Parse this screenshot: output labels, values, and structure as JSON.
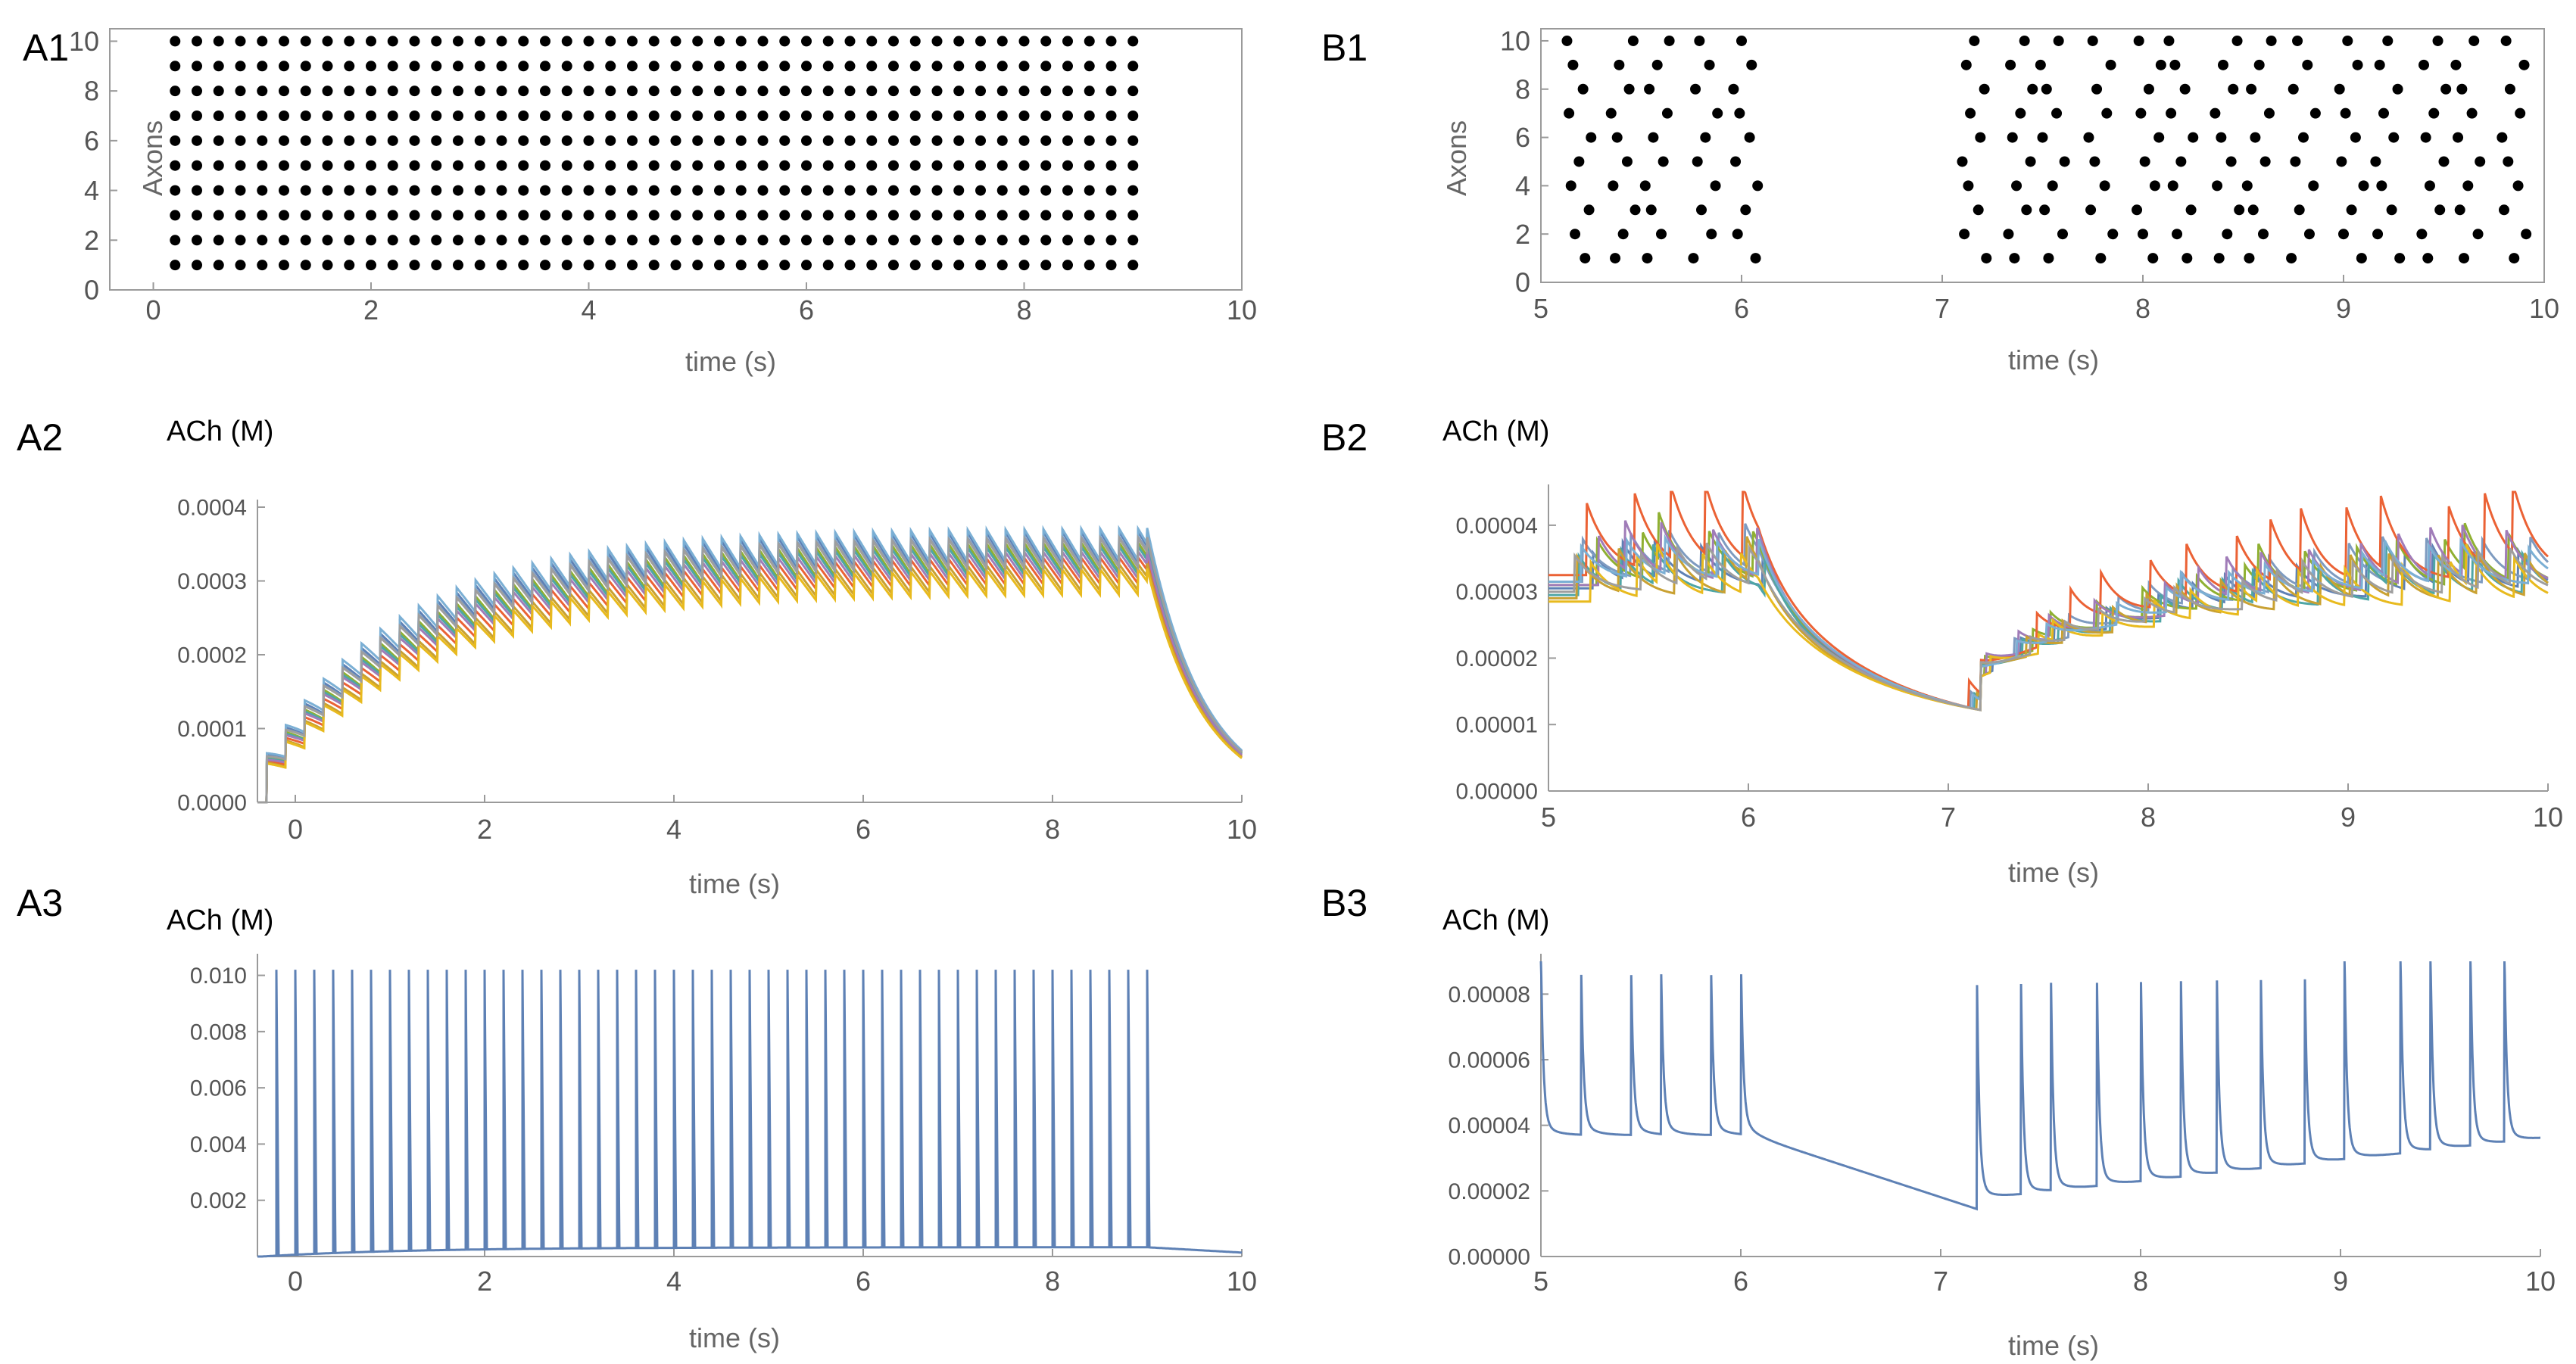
{
  "chart_data": [
    {
      "id": "A1",
      "panel_label": "A1",
      "type": "scatter",
      "xlabel": "time (s)",
      "ylabel": "Axons",
      "xlim": [
        -0.4,
        10
      ],
      "ylim": [
        0,
        10.5
      ],
      "x_ticks": [
        0,
        2,
        4,
        6,
        8,
        10
      ],
      "y_ticks": [
        0,
        2,
        4,
        6,
        8,
        10
      ],
      "marker_color": "#000000",
      "axons": [
        1,
        2,
        3,
        4,
        5,
        6,
        7,
        8,
        9,
        10
      ],
      "spike_times": [
        0.2,
        0.4,
        0.6,
        0.8,
        1.0,
        1.2,
        1.4,
        1.6,
        1.8,
        2.0,
        2.2,
        2.4,
        2.6,
        2.8,
        3.0,
        3.2,
        3.4,
        3.6,
        3.8,
        4.0,
        4.2,
        4.4,
        4.6,
        4.8,
        5.0,
        5.2,
        5.4,
        5.6,
        5.8,
        6.0,
        6.2,
        6.4,
        6.6,
        6.8,
        7.0,
        7.2,
        7.4,
        7.6,
        7.8,
        8.0,
        8.2,
        8.4,
        8.6,
        8.8,
        9.0
      ]
    },
    {
      "id": "B1",
      "panel_label": "B1",
      "type": "scatter",
      "xlabel": "time (s)",
      "ylabel": "Axons",
      "xlim": [
        5,
        10
      ],
      "ylim": [
        0,
        10.5
      ],
      "x_ticks": [
        5,
        6,
        7,
        8,
        9,
        10
      ],
      "y_ticks": [
        0,
        2,
        4,
        6,
        8,
        10
      ],
      "marker_color": "#000000",
      "spike_times": [
        5.19,
        5.41,
        5.58,
        5.82,
        6.02,
        7.16,
        7.39,
        7.55,
        7.79,
        8.03,
        8.19,
        8.42,
        8.58,
        8.8,
        9.04,
        9.22,
        9.45,
        9.62,
        9.85
      ],
      "spike_offsets": [
        -0.06,
        0.03,
        -0.02,
        0.05,
        -0.04,
        0.0,
        0.06,
        -0.05,
        0.02,
        -0.03
      ]
    },
    {
      "id": "A2",
      "panel_label": "A2",
      "type": "line",
      "ylabel": "ACh (M)",
      "xlabel": "time (s)",
      "xlim": [
        -0.4,
        10
      ],
      "ylim": [
        0,
        0.0004
      ],
      "x_ticks": [
        0,
        2,
        4,
        6,
        8,
        10
      ],
      "y_ticks": [
        "0.0000",
        "0.0001",
        "0.0002",
        "0.0003",
        "0.0004"
      ],
      "model": {
        "pulse_period": 0.2,
        "pulse_start": -0.3,
        "pulse_end": 9.0,
        "tau_decay": 0.6,
        "end_time": 10
      },
      "series": [
        {
          "color": "#5E81B5",
          "plateau": 0.000335,
          "amplitude": 4.2e-05,
          "rise_tau": 1.55
        },
        {
          "color": "#7E9BC0",
          "plateau": 0.00033,
          "amplitude": 4e-05,
          "rise_tau": 1.55
        },
        {
          "color": "#8FB032",
          "plateau": 0.000322,
          "amplitude": 4e-05,
          "rise_tau": 1.6
        },
        {
          "color": "#4FA6A6",
          "plateau": 0.000318,
          "amplitude": 3.8e-05,
          "rise_tau": 1.6
        },
        {
          "color": "#EB6235",
          "plateau": 0.000305,
          "amplitude": 3.6e-05,
          "rise_tau": 1.65
        },
        {
          "color": "#A07CB8",
          "plateau": 0.000312,
          "amplitude": 3.7e-05,
          "rise_tau": 1.6
        },
        {
          "color": "#C9A132",
          "plateau": 0.000296,
          "amplitude": 3.6e-05,
          "rise_tau": 1.7
        },
        {
          "color": "#E8BA1E",
          "plateau": 0.00029,
          "amplitude": 3.5e-05,
          "rise_tau": 1.7
        },
        {
          "color": "#7BAFD4",
          "plateau": 0.000338,
          "amplitude": 4.3e-05,
          "rise_tau": 1.5
        },
        {
          "color": "#9E9E9E",
          "plateau": 0.000328,
          "amplitude": 4e-05,
          "rise_tau": 1.55
        }
      ]
    },
    {
      "id": "B2",
      "panel_label": "B2",
      "type": "line",
      "ylabel": "ACh (M)",
      "xlabel": "time (s)",
      "xlim": [
        5,
        10
      ],
      "ylim": [
        0,
        4.5e-05
      ],
      "x_ticks": [
        5,
        6,
        7,
        8,
        9,
        10
      ],
      "y_ticks": [
        "0.00000",
        "0.00001",
        "0.00002",
        "0.00003",
        "0.00004"
      ],
      "model": {
        "start_value": 3.25e-05,
        "pause_min_value": 1.22e-05,
        "tau_decay": 0.12,
        "tau_pause": 2.0,
        "end_time": 10
      },
      "series": [
        {
          "color": "#5E81B5",
          "baseline": 3.05e-05,
          "amplitude": 5.5e-06
        },
        {
          "color": "#7E9BC0",
          "baseline": 3.15e-05,
          "amplitude": 6.5e-06
        },
        {
          "color": "#8FB032",
          "baseline": 3.1e-05,
          "amplitude": 7e-06
        },
        {
          "color": "#4FA6A6",
          "baseline": 2.95e-05,
          "amplitude": 6e-06
        },
        {
          "color": "#EB6235",
          "baseline": 3.25e-05,
          "amplitude": 1.1e-05
        },
        {
          "color": "#A07CB8",
          "baseline": 3.1e-05,
          "amplitude": 7.5e-06
        },
        {
          "color": "#C9A132",
          "baseline": 2.9e-05,
          "amplitude": 6.5e-06
        },
        {
          "color": "#E8BA1E",
          "baseline": 2.85e-05,
          "amplitude": 6e-06
        },
        {
          "color": "#7BAFD4",
          "baseline": 3.15e-05,
          "amplitude": 5.5e-06
        },
        {
          "color": "#9E9E9E",
          "baseline": 3e-05,
          "amplitude": 5.5e-06
        }
      ]
    },
    {
      "id": "A3",
      "panel_label": "A3",
      "type": "line",
      "ylabel": "ACh (M)",
      "xlabel": "time (s)",
      "xlim": [
        -0.4,
        10
      ],
      "ylim": [
        0,
        0.0105
      ],
      "x_ticks": [
        0,
        2,
        4,
        6,
        8,
        10
      ],
      "y_ticks": [
        "0.002",
        "0.004",
        "0.006",
        "0.008",
        "0.010"
      ],
      "line_color": "#5E81B5",
      "spike_peak": 0.0102,
      "spike_times": [
        -0.2,
        0.0,
        0.2,
        0.4,
        0.6,
        0.8,
        1.0,
        1.2,
        1.4,
        1.6,
        1.8,
        2.0,
        2.2,
        2.4,
        2.6,
        2.8,
        3.0,
        3.2,
        3.4,
        3.6,
        3.8,
        4.0,
        4.2,
        4.4,
        4.6,
        4.8,
        5.0,
        5.2,
        5.4,
        5.6,
        5.8,
        6.0,
        6.2,
        6.4,
        6.6,
        6.8,
        7.0,
        7.2,
        7.4,
        7.6,
        7.8,
        8.0,
        8.2,
        8.4,
        8.6,
        8.8,
        9.0
      ],
      "baseline": {
        "plateau": 0.00033,
        "rise_tau": 1.6,
        "end_value": 0.00014
      }
    },
    {
      "id": "B3",
      "panel_label": "B3",
      "type": "line",
      "ylabel": "ACh (M)",
      "xlabel": "time (s)",
      "xlim": [
        5,
        10
      ],
      "ylim": [
        0,
        9e-05
      ],
      "x_ticks": [
        5,
        6,
        7,
        8,
        9,
        10
      ],
      "y_ticks": [
        "0.00000",
        "0.00002",
        "0.00004",
        "0.00006",
        "0.00008"
      ],
      "line_color": "#5E81B5",
      "spike_peak": 9e-05,
      "spike_times": [
        5.0,
        5.2,
        5.45,
        5.6,
        5.85,
        6.0,
        7.18,
        7.4,
        7.55,
        7.78,
        8.0,
        8.2,
        8.38,
        8.6,
        8.82,
        9.02,
        9.3,
        9.45,
        9.65,
        9.82
      ],
      "baseline": {
        "pre_level": 3.7e-05,
        "pause_start": 6.05,
        "pause_end": 7.18,
        "pause_min": 1.45e-05,
        "post_start": 1.75e-05,
        "post_end": 3.6e-05
      }
    }
  ]
}
